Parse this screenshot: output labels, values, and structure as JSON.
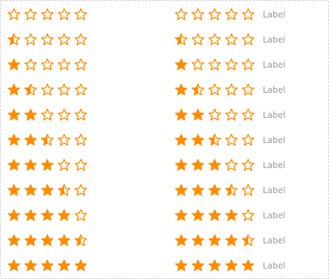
{
  "accent_color": "#ff8c00",
  "max_stars": 5,
  "columns": [
    {
      "name": "left",
      "show_label": false,
      "ratings": [
        0,
        0.5,
        1,
        1.5,
        2,
        2.5,
        3,
        3.5,
        4,
        4.5,
        5
      ]
    },
    {
      "name": "right",
      "show_label": true,
      "label": "Label",
      "ratings": [
        0,
        0.5,
        1,
        1.5,
        2,
        2.5,
        3,
        3.5,
        4,
        4.5,
        5
      ]
    }
  ]
}
